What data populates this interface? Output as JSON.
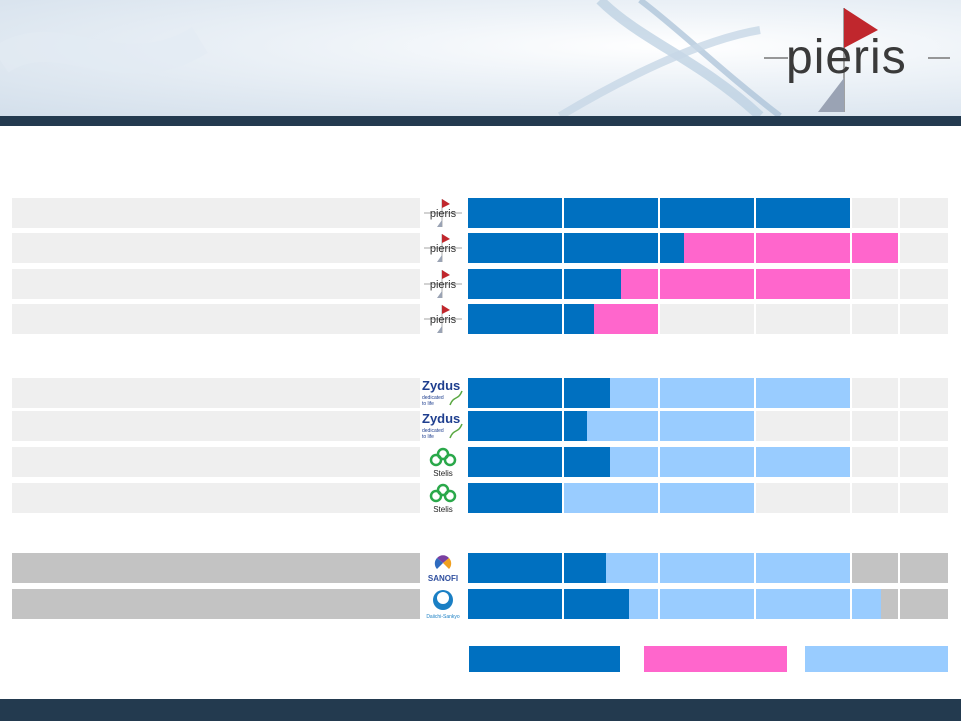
{
  "brand": {
    "name": "pieris",
    "colors": {
      "navy": "#233a4f",
      "blue": "#0070c0",
      "pink": "#ff66cc",
      "light_blue": "#99ccff",
      "track_light": "#efefef",
      "track_dark": "#c3c3c3",
      "logo_red": "#c0272d"
    }
  },
  "legend": [
    {
      "key": "blue",
      "color": "#0070c0"
    },
    {
      "key": "pink",
      "color": "#ff66cc"
    },
    {
      "key": "light_blue",
      "color": "#99ccff"
    }
  ],
  "groups": [
    {
      "rows": [
        {
          "logo": "pieris",
          "logo_icon": "pieris-mini-logo-icon",
          "track": "light",
          "segments": [
            {
              "color": "blue",
              "to": 0.8
            }
          ]
        },
        {
          "logo": "pieris",
          "logo_icon": "pieris-mini-logo-icon",
          "track": "light",
          "segments": [
            {
              "color": "blue",
              "to": 0.45
            },
            {
              "color": "pink",
              "to": 0.9
            }
          ]
        },
        {
          "logo": "pieris",
          "logo_icon": "pieris-mini-logo-icon",
          "track": "light",
          "segments": [
            {
              "color": "blue",
              "to": 0.318
            },
            {
              "color": "pink",
              "to": 0.8
            }
          ]
        },
        {
          "logo": "pieris",
          "logo_icon": "pieris-mini-logo-icon",
          "track": "light",
          "segments": [
            {
              "color": "blue",
              "to": 0.263
            },
            {
              "color": "pink",
              "to": 0.398
            }
          ]
        }
      ]
    },
    {
      "rows": [
        {
          "logo": "zydus",
          "logo_icon": "zydus-logo-icon",
          "logo_text": "Zydus",
          "logo_sub": "dedicated to life",
          "track": "light",
          "segments": [
            {
              "color": "blue",
              "to": 0.295
            },
            {
              "color": "light_blue",
              "to": 0.8
            }
          ]
        },
        {
          "logo": "zydus",
          "logo_icon": "zydus-logo-icon",
          "logo_text": "Zydus",
          "logo_sub": "dedicated to life",
          "track": "light",
          "segments": [
            {
              "color": "blue",
              "to": 0.248
            },
            {
              "color": "light_blue",
              "to": 0.6
            }
          ]
        },
        {
          "logo": "stelis",
          "logo_icon": "stelis-logo-icon",
          "logo_text": "Stelis",
          "track": "light",
          "segments": [
            {
              "color": "blue",
              "to": 0.295
            },
            {
              "color": "light_blue",
              "to": 0.8
            }
          ]
        },
        {
          "logo": "stelis",
          "logo_icon": "stelis-logo-icon",
          "logo_text": "Stelis",
          "track": "light",
          "segments": [
            {
              "color": "blue",
              "to": 0.2
            },
            {
              "color": "light_blue",
              "to": 0.6
            }
          ]
        }
      ]
    },
    {
      "rows": [
        {
          "logo": "sanofi",
          "logo_icon": "sanofi-logo-icon",
          "logo_text": "SANOFI",
          "track": "dark",
          "segments": [
            {
              "color": "blue",
              "to": 0.288
            },
            {
              "color": "light_blue",
              "to": 0.8
            }
          ]
        },
        {
          "logo": "daiichi-sankyo",
          "logo_icon": "daiichi-sankyo-logo-icon",
          "logo_text": "Daiichi-Sankyo",
          "track": "dark",
          "segments": [
            {
              "color": "blue",
              "to": 0.335
            },
            {
              "color": "light_blue",
              "to": 0.86
            }
          ]
        }
      ]
    }
  ]
}
